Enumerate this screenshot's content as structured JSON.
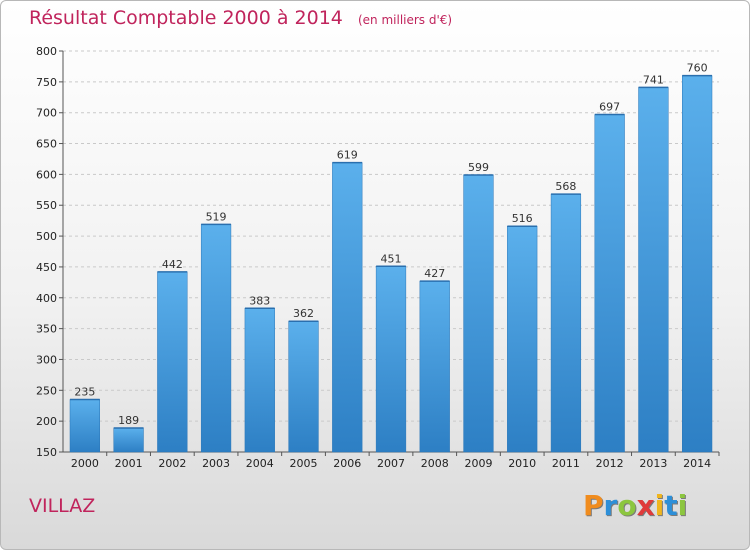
{
  "chart_data": {
    "type": "bar",
    "title": "Résultat Comptable 2000 à 2014",
    "subtitle": "(en milliers d'€)",
    "categories": [
      "2000",
      "2001",
      "2002",
      "2003",
      "2004",
      "2005",
      "2006",
      "2007",
      "2008",
      "2009",
      "2010",
      "2011",
      "2012",
      "2013",
      "2014"
    ],
    "values": [
      235,
      189,
      442,
      519,
      383,
      362,
      619,
      451,
      427,
      599,
      516,
      568,
      697,
      741,
      760
    ],
    "ylim": [
      150,
      800
    ],
    "yticks": [
      150,
      200,
      250,
      300,
      350,
      400,
      450,
      500,
      550,
      600,
      650,
      700,
      750,
      800
    ],
    "grid": true,
    "bar_color": "#3a8fd6"
  },
  "footer": {
    "commune": "VILLAZ"
  },
  "logo": {
    "letters": [
      "P",
      "r",
      "o",
      "x",
      "i",
      "t",
      "i"
    ],
    "colors": [
      "#f08c1e",
      "#2d8fd8",
      "#8cc63f",
      "#e03a3a",
      "#f0b51e",
      "#2d8fd8",
      "#8cc63f"
    ]
  }
}
